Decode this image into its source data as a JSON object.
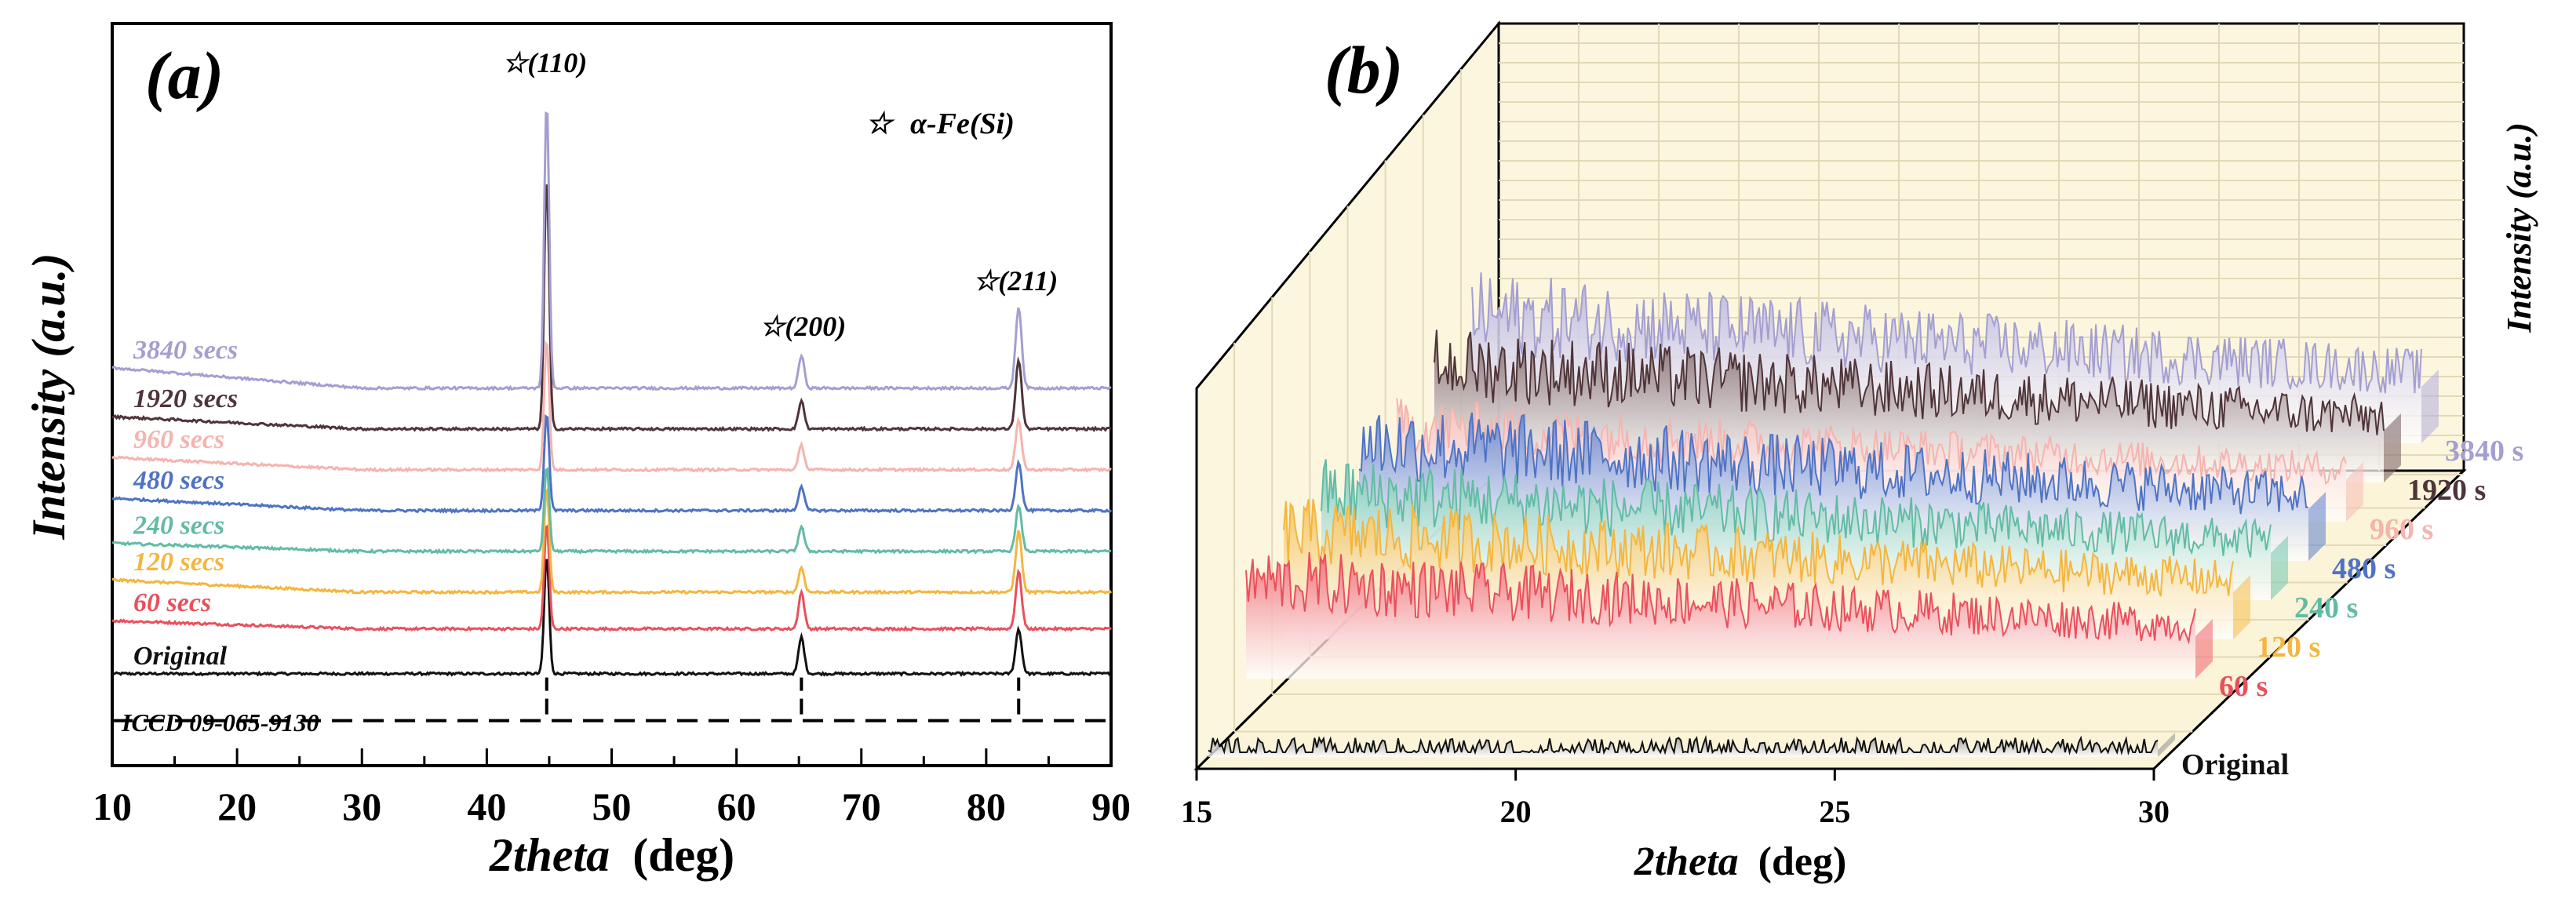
{
  "chart_data": [
    {
      "panel": "(a)",
      "type": "line",
      "xlabel_main": "2theta",
      "xlabel_unit": "(deg)",
      "ylabel": "Intensity (a.u.)",
      "xlim": [
        10,
        90
      ],
      "xticks": [
        "10",
        "20",
        "30",
        "40",
        "50",
        "60",
        "70",
        "80",
        "90"
      ],
      "legend": {
        "symbol": "☆",
        "text": "α-Fe(Si)",
        "position": "top-right"
      },
      "peaks": [
        {
          "x": 44.8,
          "symbol": "☆",
          "label": "(110)"
        },
        {
          "x": 65.2,
          "symbol": "☆",
          "label": "(200)"
        },
        {
          "x": 82.6,
          "symbol": "☆",
          "label": "(211)"
        }
      ],
      "reference": {
        "label": "ICCD 09-065-9130",
        "positions": [
          44.8,
          65.2,
          82.6
        ]
      },
      "series": [
        {
          "name": "3840 secs",
          "color": "#a49fd0",
          "offset": 7.6,
          "peaks": [
            7.0,
            0.8,
            2.0
          ],
          "slope": 0.5
        },
        {
          "name": "1920 secs",
          "color": "#4f3439",
          "offset": 6.6,
          "peaks": [
            6.2,
            0.7,
            1.7
          ],
          "slope": 0.3
        },
        {
          "name": "960 secs",
          "color": "#f4b4b0",
          "offset": 5.6,
          "peaks": [
            3.2,
            0.6,
            1.2
          ],
          "slope": 0.3
        },
        {
          "name": "480 secs",
          "color": "#4f73c4",
          "offset": 4.6,
          "peaks": [
            2.4,
            0.6,
            1.2
          ],
          "slope": 0.3
        },
        {
          "name": "240 secs",
          "color": "#63bba5",
          "offset": 3.6,
          "peaks": [
            2.1,
            0.6,
            1.1
          ],
          "slope": 0.2
        },
        {
          "name": "120 secs",
          "color": "#f3b63f",
          "offset": 2.6,
          "peaks": [
            2.6,
            0.6,
            1.5
          ],
          "slope": 0.3
        },
        {
          "name": "60 secs",
          "color": "#e9505c",
          "offset": 1.7,
          "peaks": [
            2.6,
            0.9,
            1.4
          ],
          "slope": 0.2
        },
        {
          "name": "Original",
          "color": "#111111",
          "offset": 0.6,
          "peaks": [
            2.9,
            0.9,
            1.1
          ],
          "slope": 0.0
        }
      ]
    },
    {
      "panel": "(b)",
      "type": "area",
      "xlabel_main": "2theta",
      "xlabel_unit": "(deg)",
      "ylabel": "Intensity (a.u.)",
      "xlim": [
        15,
        30
      ],
      "xticks": [
        "15",
        "20",
        "25",
        "30"
      ],
      "series": [
        {
          "name": "Original",
          "color": "#111111",
          "fill": "#9a9a9a",
          "level": 0.15,
          "noise": 0.25
        },
        {
          "name": "60 s",
          "color": "#e9505c",
          "fill": "#f06f79",
          "level": 0.9,
          "noise": 0.7
        },
        {
          "name": "120 s",
          "color": "#f3b63f",
          "fill": "#f6c25a",
          "level": 1.0,
          "noise": 0.75
        },
        {
          "name": "240 s",
          "color": "#63bba5",
          "fill": "#7cc9b6",
          "level": 1.0,
          "noise": 0.75
        },
        {
          "name": "480 s",
          "color": "#4f73c4",
          "fill": "#6a88d1",
          "level": 1.1,
          "noise": 0.85
        },
        {
          "name": "960 s",
          "color": "#f4b4b0",
          "fill": "#f8bfbb",
          "level": 0.9,
          "noise": 0.6
        },
        {
          "name": "1920 s",
          "color": "#4f3439",
          "fill": "#7f676b",
          "level": 1.1,
          "noise": 0.8
        },
        {
          "name": "3840 s",
          "color": "#a49fd0",
          "fill": "#b8b3dc",
          "level": 1.2,
          "noise": 0.9
        }
      ]
    }
  ]
}
